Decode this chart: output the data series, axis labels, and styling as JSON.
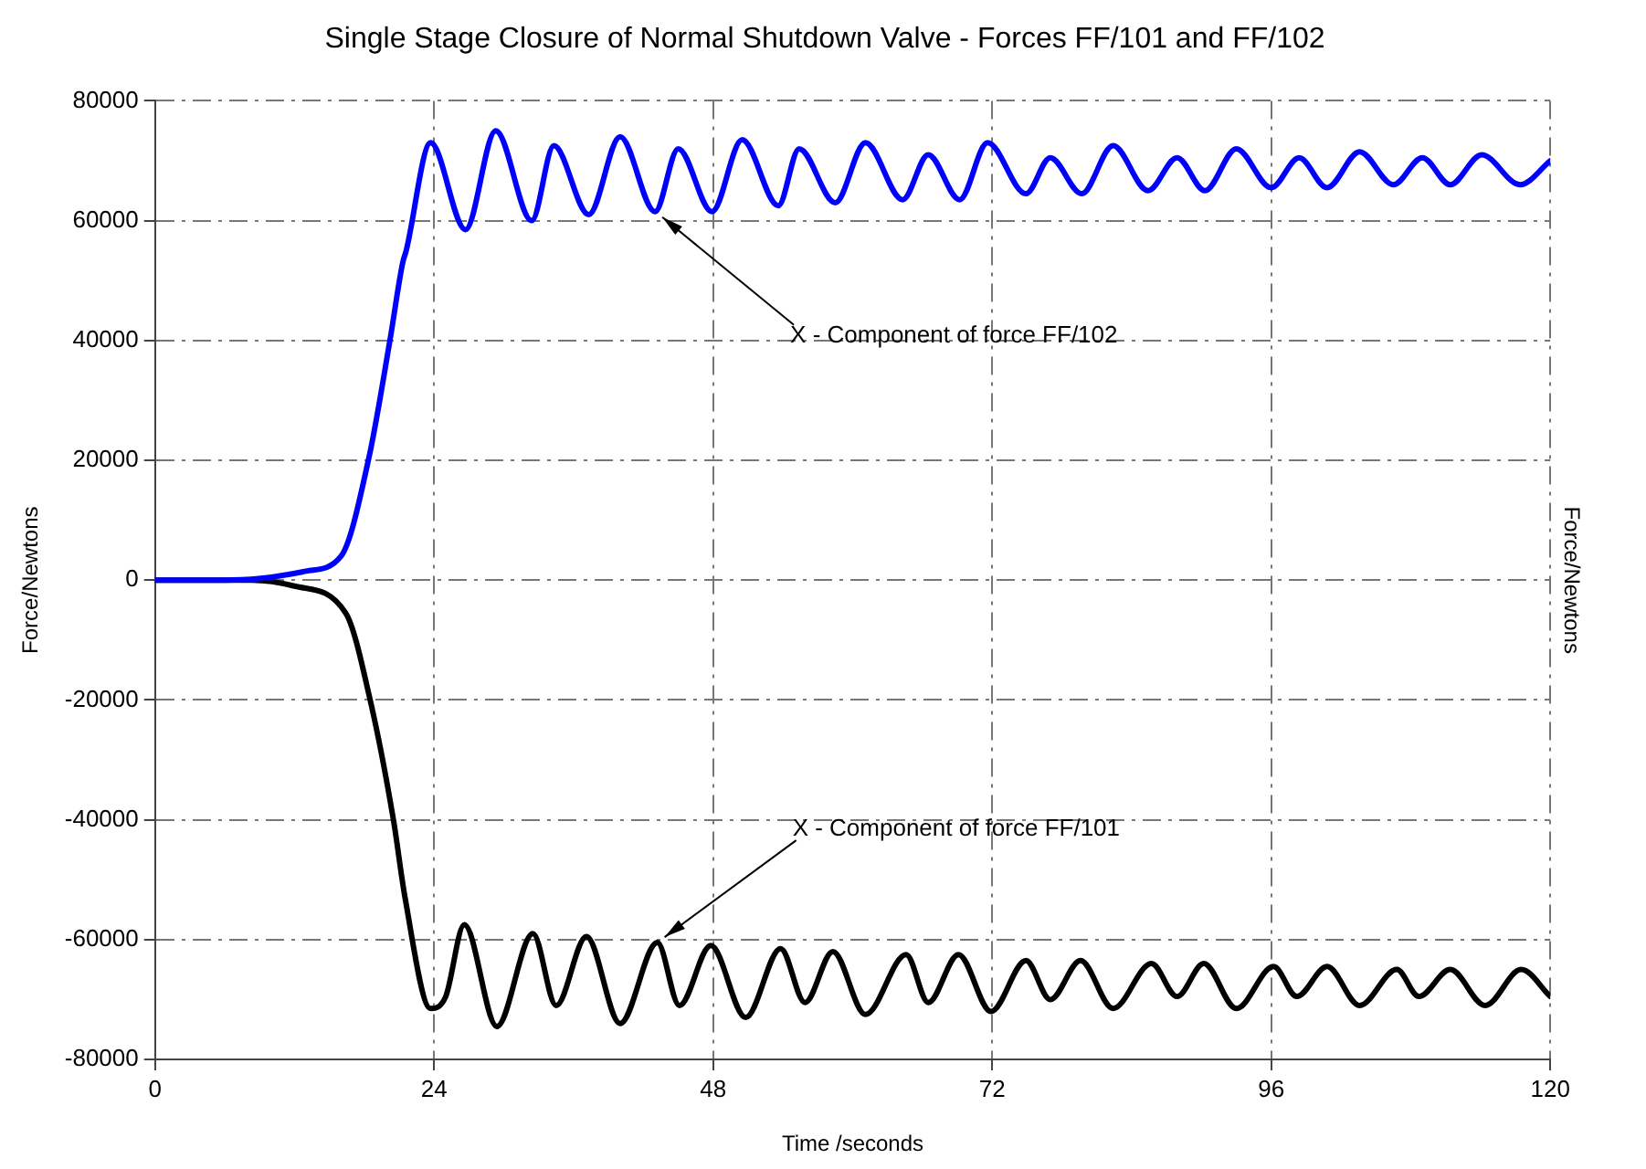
{
  "chart_data": {
    "type": "line",
    "title": "Single Stage Closure of Normal Shutdown Valve - Forces FF/101 and FF/102",
    "xlabel": "Time /seconds",
    "ylabel": "Force/Newtons",
    "y2label": "Force/Newtons",
    "xlim": [
      0,
      120
    ],
    "xticks": [
      0,
      24,
      48,
      72,
      96,
      120
    ],
    "ylim": [
      -80000,
      80000
    ],
    "yticks": [
      -80000,
      -60000,
      -40000,
      -20000,
      0,
      20000,
      40000,
      60000,
      80000
    ],
    "grid": true,
    "legend": false,
    "marker": "none",
    "line_style": "solid",
    "annotations": [
      {
        "text": "X - Component of force FF/102",
        "x": 43,
        "y": 61500
      },
      {
        "text": "X - Component of force FF/101",
        "x": 43.2,
        "y": -60500
      }
    ],
    "series": [
      {
        "color": "#0000ff",
        "x": [
          0,
          6,
          10,
          13,
          16,
          18.4,
          20.2,
          21.3,
          21.6,
          23.7,
          26.7,
          29.3,
          32.4,
          34.3,
          37.3,
          40,
          43,
          45,
          47.9,
          50.5,
          53.6,
          55.4,
          58.5,
          61.1,
          64.3,
          66.5,
          69.2,
          71.6,
          74.9,
          77,
          79.7,
          82.4,
          85.4,
          87.9,
          90.3,
          93,
          96,
          98.4,
          100.8,
          103.6,
          106.5,
          109,
          111.4,
          114.1,
          117.4,
          120
        ],
        "values": [
          0,
          0,
          500,
          1500,
          4000,
          20500,
          40000,
          53000,
          55000,
          73000,
          58500,
          75000,
          60000,
          72500,
          61000,
          74000,
          61500,
          72000,
          61500,
          73500,
          62500,
          72000,
          63000,
          73000,
          63500,
          71000,
          63500,
          73000,
          64500,
          70500,
          64500,
          72500,
          65000,
          70500,
          65000,
          72000,
          65500,
          70500,
          65500,
          71500,
          66000,
          70500,
          66000,
          71000,
          66000,
          70000
        ]
      },
      {
        "color": "#000000",
        "x": [
          0,
          8.3,
          12,
          16.4,
          18.5,
          20.5,
          21.5,
          23.7,
          25,
          26.6,
          29.4,
          32.5,
          34.5,
          37.1,
          40,
          43.2,
          45.1,
          47.8,
          50.8,
          53.8,
          55.9,
          58.3,
          61.1,
          64.6,
          66.5,
          69.1,
          71.9,
          74.9,
          77,
          79.6,
          82.4,
          85.7,
          87.9,
          90.2,
          93,
          96.2,
          98.2,
          100.8,
          103.6,
          106.8,
          108.7,
          111.4,
          114.4,
          117.5,
          120
        ],
        "values": [
          0,
          0,
          -1000,
          -5500,
          -20000,
          -40000,
          -53000,
          -71500,
          -69500,
          -57500,
          -74500,
          -59000,
          -71000,
          -59500,
          -74000,
          -60500,
          -71000,
          -61000,
          -73000,
          -61500,
          -70500,
          -62000,
          -72500,
          -62500,
          -70500,
          -62500,
          -72000,
          -63500,
          -70000,
          -63500,
          -71500,
          -64000,
          -69500,
          -64000,
          -71500,
          -64500,
          -69500,
          -64500,
          -71000,
          -65000,
          -69500,
          -65000,
          -71000,
          -65000,
          -69500
        ]
      }
    ]
  }
}
